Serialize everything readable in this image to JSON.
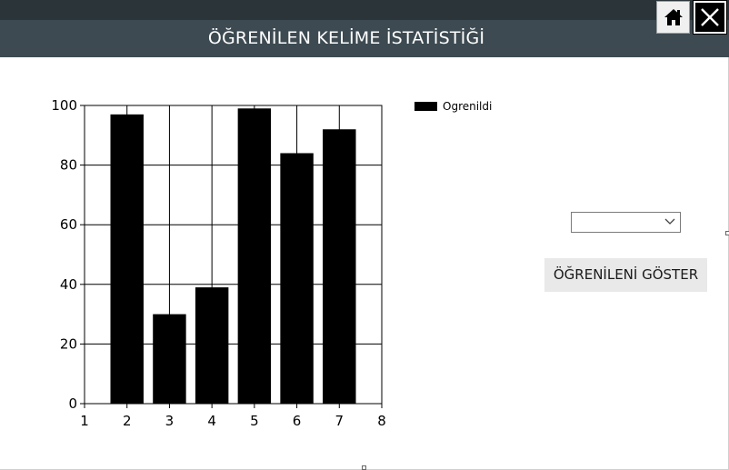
{
  "window": {
    "title": "ÖĞRENİLEN KELİME İSTATİSTİĞİ"
  },
  "titlebar_buttons": {
    "home_icon": "home-icon",
    "close_icon": "close-icon"
  },
  "controls": {
    "combo_value": "",
    "show_button_label": "ÖĞRENİLENİ GÖSTER"
  },
  "colors": {
    "titlebar": "#3d4a51",
    "topstrip": "#2b3438",
    "bars": "#000000"
  },
  "chart_data": {
    "type": "bar",
    "x": [
      2,
      3,
      4,
      5,
      6,
      7
    ],
    "series": [
      {
        "name": "Ogrenildi",
        "values": [
          97,
          30,
          39,
          99,
          84,
          92
        ]
      }
    ],
    "xlim": [
      1,
      8
    ],
    "ylim": [
      0,
      100
    ],
    "xticks": [
      "1",
      "2",
      "3",
      "4",
      "5",
      "6",
      "7",
      "8"
    ],
    "yticks": [
      "0",
      "20",
      "40",
      "60",
      "80",
      "100"
    ],
    "grid": true,
    "legend": "top-right"
  }
}
